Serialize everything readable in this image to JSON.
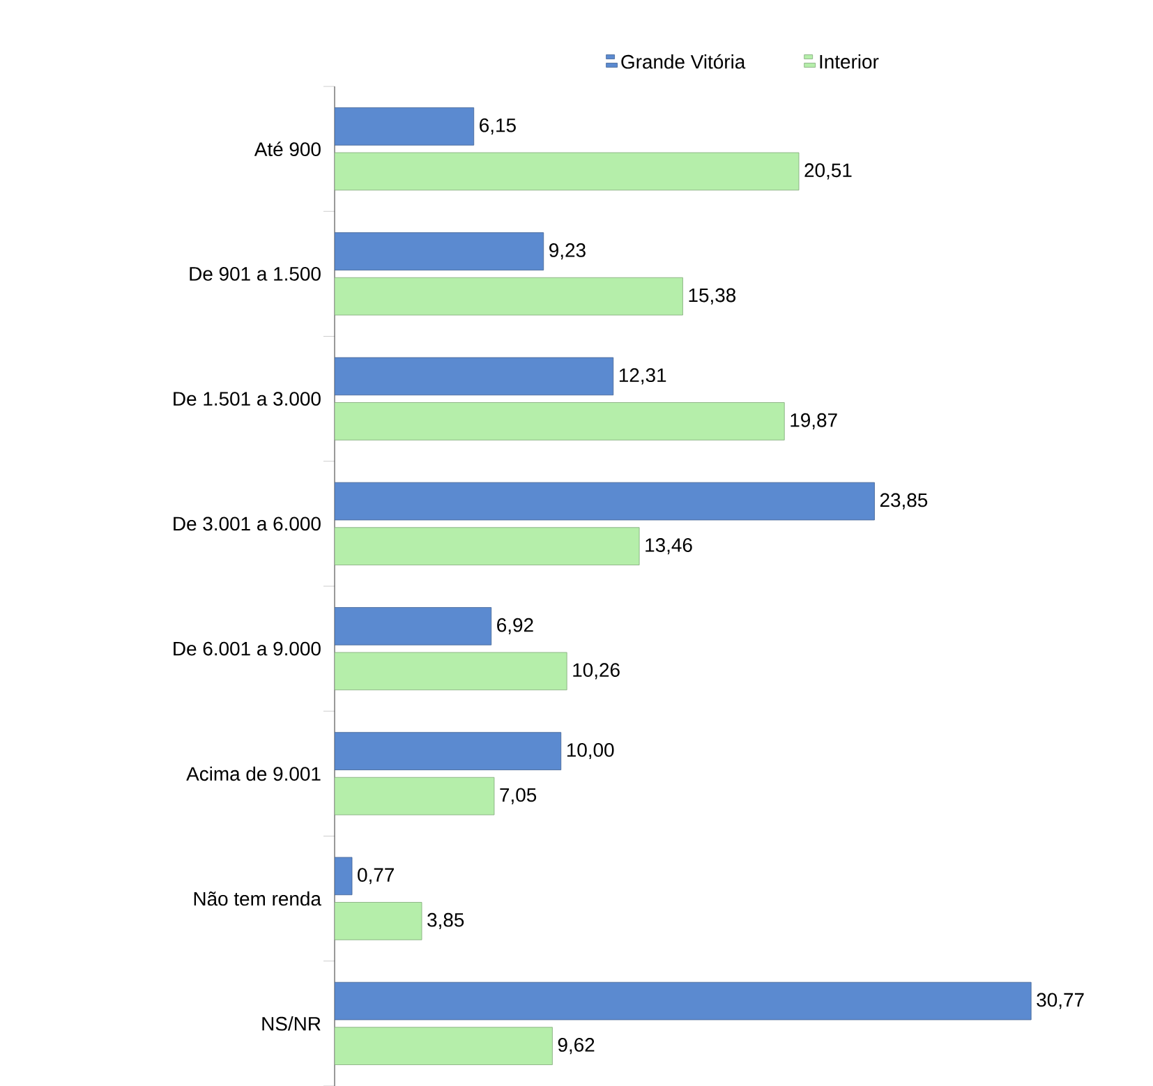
{
  "chart_data": {
    "type": "bar",
    "orientation": "horizontal",
    "categories": [
      "Até 900",
      "De 901 a 1.500",
      "De 1.501 a 3.000",
      "De 3.001 a 6.000",
      "De 6.001 a 9.000",
      "Acima de 9.001",
      "Não tem renda",
      "NS/NR"
    ],
    "series": [
      {
        "name": "Grande Vitória",
        "color": "#5b8ad0",
        "values": [
          6.15,
          9.23,
          12.31,
          23.85,
          6.92,
          10.0,
          0.77,
          30.77
        ],
        "value_labels": [
          "6,15",
          "9,23",
          "12,31",
          "23,85",
          "6,92",
          "10,00",
          "0,77",
          "30,77"
        ]
      },
      {
        "name": "Interior",
        "color": "#b5eeaa",
        "values": [
          20.51,
          15.38,
          19.87,
          13.46,
          10.26,
          7.05,
          3.85,
          9.62
        ],
        "value_labels": [
          "20,51",
          "15,38",
          "19,87",
          "13,46",
          "10,26",
          "7,05",
          "3,85",
          "9,62"
        ]
      }
    ],
    "legend": "top"
  }
}
